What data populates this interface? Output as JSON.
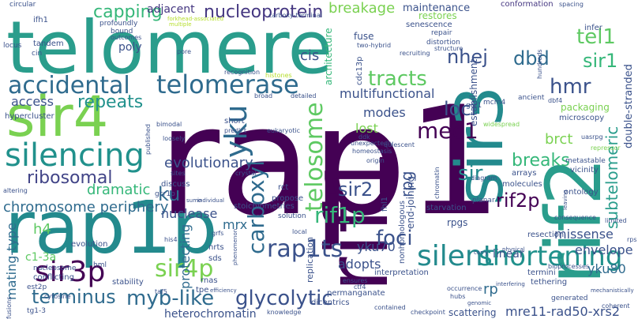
{
  "word_cloud": {
    "words": [
      {
        "text": "rap1",
        "color": "#440154"
      },
      {
        "text": "rap1p",
        "color": "#238a8d"
      },
      {
        "text": "telomere",
        "color": "#2a9d8c"
      },
      {
        "text": "rif1",
        "color": "#440154"
      },
      {
        "text": "rif2",
        "color": "#2a9d8c"
      },
      {
        "text": "sir3",
        "color": "#238a8d"
      },
      {
        "text": "sir4",
        "color": "#7ad151"
      },
      {
        "text": "accidental",
        "color": "#2f6b8e"
      },
      {
        "text": "telomerase",
        "color": "#2f6b8e"
      },
      {
        "text": "nucleoprotein",
        "color": "#453781"
      },
      {
        "text": "capping",
        "color": "#35b779"
      },
      {
        "text": "adjacent",
        "color": "#453781"
      },
      {
        "text": "breakage",
        "color": "#7ad151"
      },
      {
        "text": "maintenance",
        "color": "#3b528b"
      },
      {
        "text": "conformation",
        "color": "#453781"
      },
      {
        "text": "tel1",
        "color": "#5ec962"
      },
      {
        "text": "sir1",
        "color": "#35b779"
      },
      {
        "text": "hmr",
        "color": "#3b528b"
      },
      {
        "text": "nhej",
        "color": "#3b528b"
      },
      {
        "text": "dbd",
        "color": "#2f6b8e"
      },
      {
        "text": "tracts",
        "color": "#5ec962"
      },
      {
        "text": "silencing",
        "color": "#21918c"
      },
      {
        "text": "yku",
        "color": "#2f6b8e"
      },
      {
        "text": "loci",
        "color": "#3b528b"
      },
      {
        "text": "mec1",
        "color": "#440154"
      },
      {
        "text": "sir",
        "color": "#238a8d"
      },
      {
        "text": "repeats",
        "color": "#21918c"
      },
      {
        "text": "ribosomal",
        "color": "#414487"
      },
      {
        "text": "ku",
        "color": "#2f6b8e"
      },
      {
        "text": "dramatic",
        "color": "#35b779"
      },
      {
        "text": "evolutionary",
        "color": "#3b528b"
      },
      {
        "text": "chromosome periphery",
        "color": "#2f6b8e"
      },
      {
        "text": "telosome",
        "color": "#5ec962"
      },
      {
        "text": "breaks",
        "color": "#35b779"
      },
      {
        "text": "brct",
        "color": "#7ad151"
      },
      {
        "text": "rif2p",
        "color": "#440154"
      },
      {
        "text": "subtelomeric",
        "color": "#2a9d8c"
      },
      {
        "text": "double-stranded",
        "color": "#3b528b"
      },
      {
        "text": "rpg",
        "color": "#3b528b"
      },
      {
        "text": "sir2",
        "color": "#3b528b"
      },
      {
        "text": "sir3p",
        "color": "#440154"
      },
      {
        "text": "sir4p",
        "color": "#7ad151"
      },
      {
        "text": "carboxyl",
        "color": "#2f6b8e"
      },
      {
        "text": "rap1ts",
        "color": "#3b528b"
      },
      {
        "text": "rif1p",
        "color": "#35b779"
      },
      {
        "text": "foci",
        "color": "#3b528b"
      },
      {
        "text": "silent",
        "color": "#238a8d"
      },
      {
        "text": "shortening",
        "color": "#21918c"
      },
      {
        "text": "terminus",
        "color": "#2f6b8e"
      },
      {
        "text": "myb-like",
        "color": "#2f6b8e"
      },
      {
        "text": "glycolytic",
        "color": "#3b528b"
      },
      {
        "text": "multifunctional",
        "color": "#3b528b"
      },
      {
        "text": "h4",
        "color": "#5ec962"
      },
      {
        "text": "c1-3a",
        "color": "#5ec962"
      },
      {
        "text": "mating-type",
        "color": "#2f6b8e"
      },
      {
        "text": "nuclease",
        "color": "#3b528b"
      },
      {
        "text": "protecting",
        "color": "#2f6b8e"
      },
      {
        "text": "yku70",
        "color": "#3b528b"
      },
      {
        "text": "adopts",
        "color": "#3b528b"
      },
      {
        "text": "missense",
        "color": "#3b528b"
      },
      {
        "text": "envelope",
        "color": "#3b528b"
      },
      {
        "text": "yku80",
        "color": "#2f6b8e"
      },
      {
        "text": "heterochromatin",
        "color": "#3b528b"
      },
      {
        "text": "mre11-rad50-xrs2",
        "color": "#3b528b"
      },
      {
        "text": "scattering",
        "color": "#3b528b"
      },
      {
        "text": "rp",
        "color": "#2f6b8e"
      },
      {
        "text": "lost",
        "color": "#7ad151"
      },
      {
        "text": "modes",
        "color": "#3b528b"
      },
      {
        "text": "cis",
        "color": "#3b528b"
      },
      {
        "text": "mrx",
        "color": "#2f6b8e"
      },
      {
        "text": "fuse",
        "color": "#3b528b"
      },
      {
        "text": "poly",
        "color": "#3b528b"
      },
      {
        "text": "ifh1",
        "color": "#3b528b"
      },
      {
        "text": "access",
        "color": "#3b528b"
      },
      {
        "text": "hypercluster",
        "color": "#3b528b"
      },
      {
        "text": "tandem",
        "color": "#3b528b"
      },
      {
        "text": "cin",
        "color": "#3b528b"
      },
      {
        "text": "locus",
        "color": "#3b528b"
      },
      {
        "text": "circular",
        "color": "#3b528b"
      },
      {
        "text": "profoundly",
        "color": "#3b528b"
      },
      {
        "text": "bound",
        "color": "#3b528b"
      },
      {
        "text": "outcomes",
        "color": "#3b528b"
      },
      {
        "text": "forkhead-associated",
        "color": "#b5de2b"
      },
      {
        "text": "multiple",
        "color": "#b5de2b"
      },
      {
        "text": "carboxy-terminal",
        "color": "#3b528b"
      },
      {
        "text": "pore",
        "color": "#3b528b"
      },
      {
        "text": "restores",
        "color": "#7ad151"
      },
      {
        "text": "senescence",
        "color": "#3b528b"
      },
      {
        "text": "repair",
        "color": "#3b528b"
      },
      {
        "text": "distortion",
        "color": "#3b528b"
      },
      {
        "text": "structure",
        "color": "#3b528b"
      },
      {
        "text": "two-hybrid",
        "color": "#3b528b"
      },
      {
        "text": "recruiting",
        "color": "#3b528b"
      },
      {
        "text": "architecture",
        "color": "#35b779"
      },
      {
        "text": "cdc13p",
        "color": "#3b528b"
      },
      {
        "text": "establishment",
        "color": "#3b528b"
      },
      {
        "text": "hundreds",
        "color": "#3b528b"
      },
      {
        "text": "infer",
        "color": "#3b528b"
      },
      {
        "text": "spacing",
        "color": "#3b528b"
      },
      {
        "text": "packaging",
        "color": "#7ad151"
      },
      {
        "text": "microscopy",
        "color": "#3b528b"
      },
      {
        "text": "dbf4",
        "color": "#3b528b"
      },
      {
        "text": "ancient",
        "color": "#3b528b"
      },
      {
        "text": "mcm4",
        "color": "#3b528b"
      },
      {
        "text": "recognition",
        "color": "#3b528b"
      },
      {
        "text": "histones",
        "color": "#b5de2b"
      },
      {
        "text": "broad",
        "color": "#3b528b"
      },
      {
        "text": "detailed",
        "color": "#3b528b"
      },
      {
        "text": "short",
        "color": "#3b528b"
      },
      {
        "text": "bimodal",
        "color": "#3b528b"
      },
      {
        "text": "predict",
        "color": "#3b528b"
      },
      {
        "text": "eukaryotic",
        "color": "#3b528b"
      },
      {
        "text": "gcr1",
        "color": "#3b528b"
      },
      {
        "text": "ddk",
        "color": "#3b528b"
      },
      {
        "text": "unexpectedly",
        "color": "#3b528b"
      },
      {
        "text": "homeostasis",
        "color": "#3b528b"
      },
      {
        "text": "origin",
        "color": "#3b528b"
      },
      {
        "text": "quiescent",
        "color": "#3b528b"
      },
      {
        "text": "widespread",
        "color": "#7ad151"
      },
      {
        "text": "uasrpg",
        "color": "#3b528b"
      },
      {
        "text": "repressor",
        "color": "#7ad151"
      },
      {
        "text": "metastable",
        "color": "#3b528b"
      },
      {
        "text": "vicinity",
        "color": "#3b528b"
      },
      {
        "text": "ontology",
        "color": "#3b528b"
      },
      {
        "text": "arrays",
        "color": "#3b528b"
      },
      {
        "text": "molecules",
        "color": "#3b528b"
      },
      {
        "text": "diagram",
        "color": "#3b528b"
      },
      {
        "text": "chromatin",
        "color": "#3b528b"
      },
      {
        "text": "published",
        "color": "#3b528b"
      },
      {
        "text": "loosely",
        "color": "#3b528b"
      },
      {
        "text": "sites",
        "color": "#3b528b"
      },
      {
        "text": "crystal",
        "color": "#3b528b"
      },
      {
        "text": "rct",
        "color": "#3b528b"
      },
      {
        "text": "propose",
        "color": "#3b528b"
      },
      {
        "text": "stoichiometries",
        "color": "#3b528b"
      },
      {
        "text": "solution",
        "color": "#3b528b"
      },
      {
        "text": "discuss",
        "color": "#3b528b"
      },
      {
        "text": "gcr1p",
        "color": "#3b528b"
      },
      {
        "text": "altering",
        "color": "#3b528b"
      },
      {
        "text": "nucleosome",
        "color": "#3b528b"
      },
      {
        "text": "sumo",
        "color": "#3b528b"
      },
      {
        "text": "individual",
        "color": "#3b528b"
      },
      {
        "text": "grfs",
        "color": "#3b528b"
      },
      {
        "text": "his4",
        "color": "#3b528b"
      },
      {
        "text": "hml",
        "color": "#3b528b"
      },
      {
        "text": "nrts",
        "color": "#3b528b"
      },
      {
        "text": "sds",
        "color": "#3b528b"
      },
      {
        "text": "rnas",
        "color": "#3b528b"
      },
      {
        "text": "tpe",
        "color": "#3b528b"
      },
      {
        "text": "efficiency",
        "color": "#3b528b"
      },
      {
        "text": "phenomenon",
        "color": "#3b528b"
      },
      {
        "text": "local",
        "color": "#3b528b"
      },
      {
        "text": "evolution",
        "color": "#3b528b"
      },
      {
        "text": "conflicting",
        "color": "#3b528b"
      },
      {
        "text": "est2p",
        "color": "#3b528b"
      },
      {
        "text": "cytosine",
        "color": "#3b528b"
      },
      {
        "text": "tg1-3",
        "color": "#3b528b"
      },
      {
        "text": "stability",
        "color": "#3b528b"
      },
      {
        "text": "taf5",
        "color": "#3b528b"
      },
      {
        "text": "fusions",
        "color": "#3b528b"
      },
      {
        "text": "knowledge",
        "color": "#3b528b"
      },
      {
        "text": "dicentrics",
        "color": "#3b528b"
      },
      {
        "text": "permanganate",
        "color": "#3b528b"
      },
      {
        "text": "contained",
        "color": "#3b528b"
      },
      {
        "text": "checkpoint",
        "color": "#3b528b"
      },
      {
        "text": "ensures",
        "color": "#3b528b"
      },
      {
        "text": "ctf4",
        "color": "#3b528b"
      },
      {
        "text": "occurrence",
        "color": "#3b528b"
      },
      {
        "text": "hubs",
        "color": "#3b528b"
      },
      {
        "text": "genomic",
        "color": "#3b528b"
      },
      {
        "text": "interpretation",
        "color": "#3b528b"
      },
      {
        "text": "rpgs",
        "color": "#3b528b"
      },
      {
        "text": "end-joining",
        "color": "#3b528b"
      },
      {
        "text": "starvation",
        "color": "#3b528b"
      },
      {
        "text": "planar",
        "color": "#3b528b"
      },
      {
        "text": "nonhomologous",
        "color": "#3b528b"
      },
      {
        "text": "fhl1",
        "color": "#3b528b"
      },
      {
        "text": "replication",
        "color": "#3b528b"
      },
      {
        "text": "tethering",
        "color": "#3b528b"
      },
      {
        "text": "termini",
        "color": "#3b528b"
      },
      {
        "text": "linear",
        "color": "#3b528b"
      },
      {
        "text": "resection",
        "color": "#3b528b"
      },
      {
        "text": "physical",
        "color": "#3b528b"
      },
      {
        "text": "interfering",
        "color": "#3b528b"
      },
      {
        "text": "carry",
        "color": "#3b528b"
      },
      {
        "text": "generated",
        "color": "#3b528b"
      },
      {
        "text": "coherent",
        "color": "#3b528b"
      },
      {
        "text": "bioprocesses",
        "color": "#3b528b"
      },
      {
        "text": "mechanistically",
        "color": "#3b528b"
      },
      {
        "text": "rps",
        "color": "#3b528b"
      },
      {
        "text": "limited",
        "color": "#3b528b"
      },
      {
        "text": "leaving",
        "color": "#3b528b"
      },
      {
        "text": "consequence",
        "color": "#3b528b"
      },
      {
        "text": "euil",
        "color": "#3b528b"
      },
      {
        "text": "ku",
        "color": "#3b528b"
      },
      {
        "text": "ubiquitin",
        "color": "#3b528b"
      },
      {
        "text": "dsbs",
        "color": "#3b528b"
      }
    ]
  }
}
